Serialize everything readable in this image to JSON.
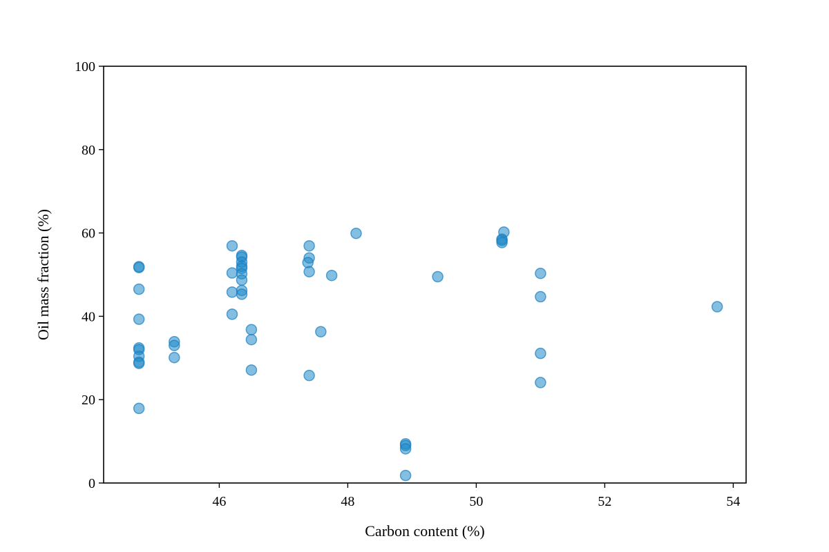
{
  "chart_data": {
    "type": "scatter",
    "title": "",
    "xlabel": "Carbon content (%)",
    "ylabel": "Oil mass fraction (%)",
    "xlim": [
      44.2,
      54.2
    ],
    "ylim": [
      0,
      100
    ],
    "xticks": [
      46,
      48,
      50,
      52,
      54
    ],
    "yticks": [
      0,
      20,
      40,
      60,
      80,
      100
    ],
    "grid": false,
    "legend": "none",
    "marker_color": "#1f8ac9",
    "marker_edge_color": "#1a7dc0",
    "marker_alpha": 0.55,
    "series": [
      {
        "points": [
          [
            44.75,
            51.9
          ],
          [
            44.75,
            51.7
          ],
          [
            44.75,
            46.5
          ],
          [
            44.75,
            39.3
          ],
          [
            44.75,
            32.4
          ],
          [
            44.75,
            32.0
          ],
          [
            44.75,
            30.4
          ],
          [
            44.75,
            29.0
          ],
          [
            44.75,
            28.7
          ],
          [
            44.75,
            17.9
          ],
          [
            45.3,
            33.9
          ],
          [
            45.3,
            33.0
          ],
          [
            45.3,
            30.1
          ],
          [
            46.2,
            56.9
          ],
          [
            46.2,
            50.4
          ],
          [
            46.2,
            45.8
          ],
          [
            46.2,
            40.5
          ],
          [
            46.35,
            54.6
          ],
          [
            46.35,
            54.2
          ],
          [
            46.35,
            53.0
          ],
          [
            46.35,
            52.0
          ],
          [
            46.35,
            51.5
          ],
          [
            46.35,
            50.2
          ],
          [
            46.35,
            48.7
          ],
          [
            46.35,
            46.2
          ],
          [
            46.35,
            45.3
          ],
          [
            46.5,
            36.8
          ],
          [
            46.5,
            34.4
          ],
          [
            46.5,
            27.1
          ],
          [
            47.4,
            56.9
          ],
          [
            47.4,
            54.0
          ],
          [
            47.38,
            52.9
          ],
          [
            47.4,
            50.7
          ],
          [
            47.4,
            25.8
          ],
          [
            47.58,
            36.3
          ],
          [
            47.75,
            49.8
          ],
          [
            48.13,
            59.9
          ],
          [
            48.9,
            9.4
          ],
          [
            48.9,
            9.0
          ],
          [
            48.9,
            8.2
          ],
          [
            48.9,
            1.8
          ],
          [
            49.4,
            49.5
          ],
          [
            50.43,
            60.2
          ],
          [
            50.4,
            58.5
          ],
          [
            50.4,
            58.2
          ],
          [
            50.4,
            57.7
          ],
          [
            51.0,
            50.3
          ],
          [
            51.0,
            44.7
          ],
          [
            51.0,
            31.1
          ],
          [
            51.0,
            24.1
          ],
          [
            53.75,
            42.3
          ]
        ]
      }
    ]
  }
}
